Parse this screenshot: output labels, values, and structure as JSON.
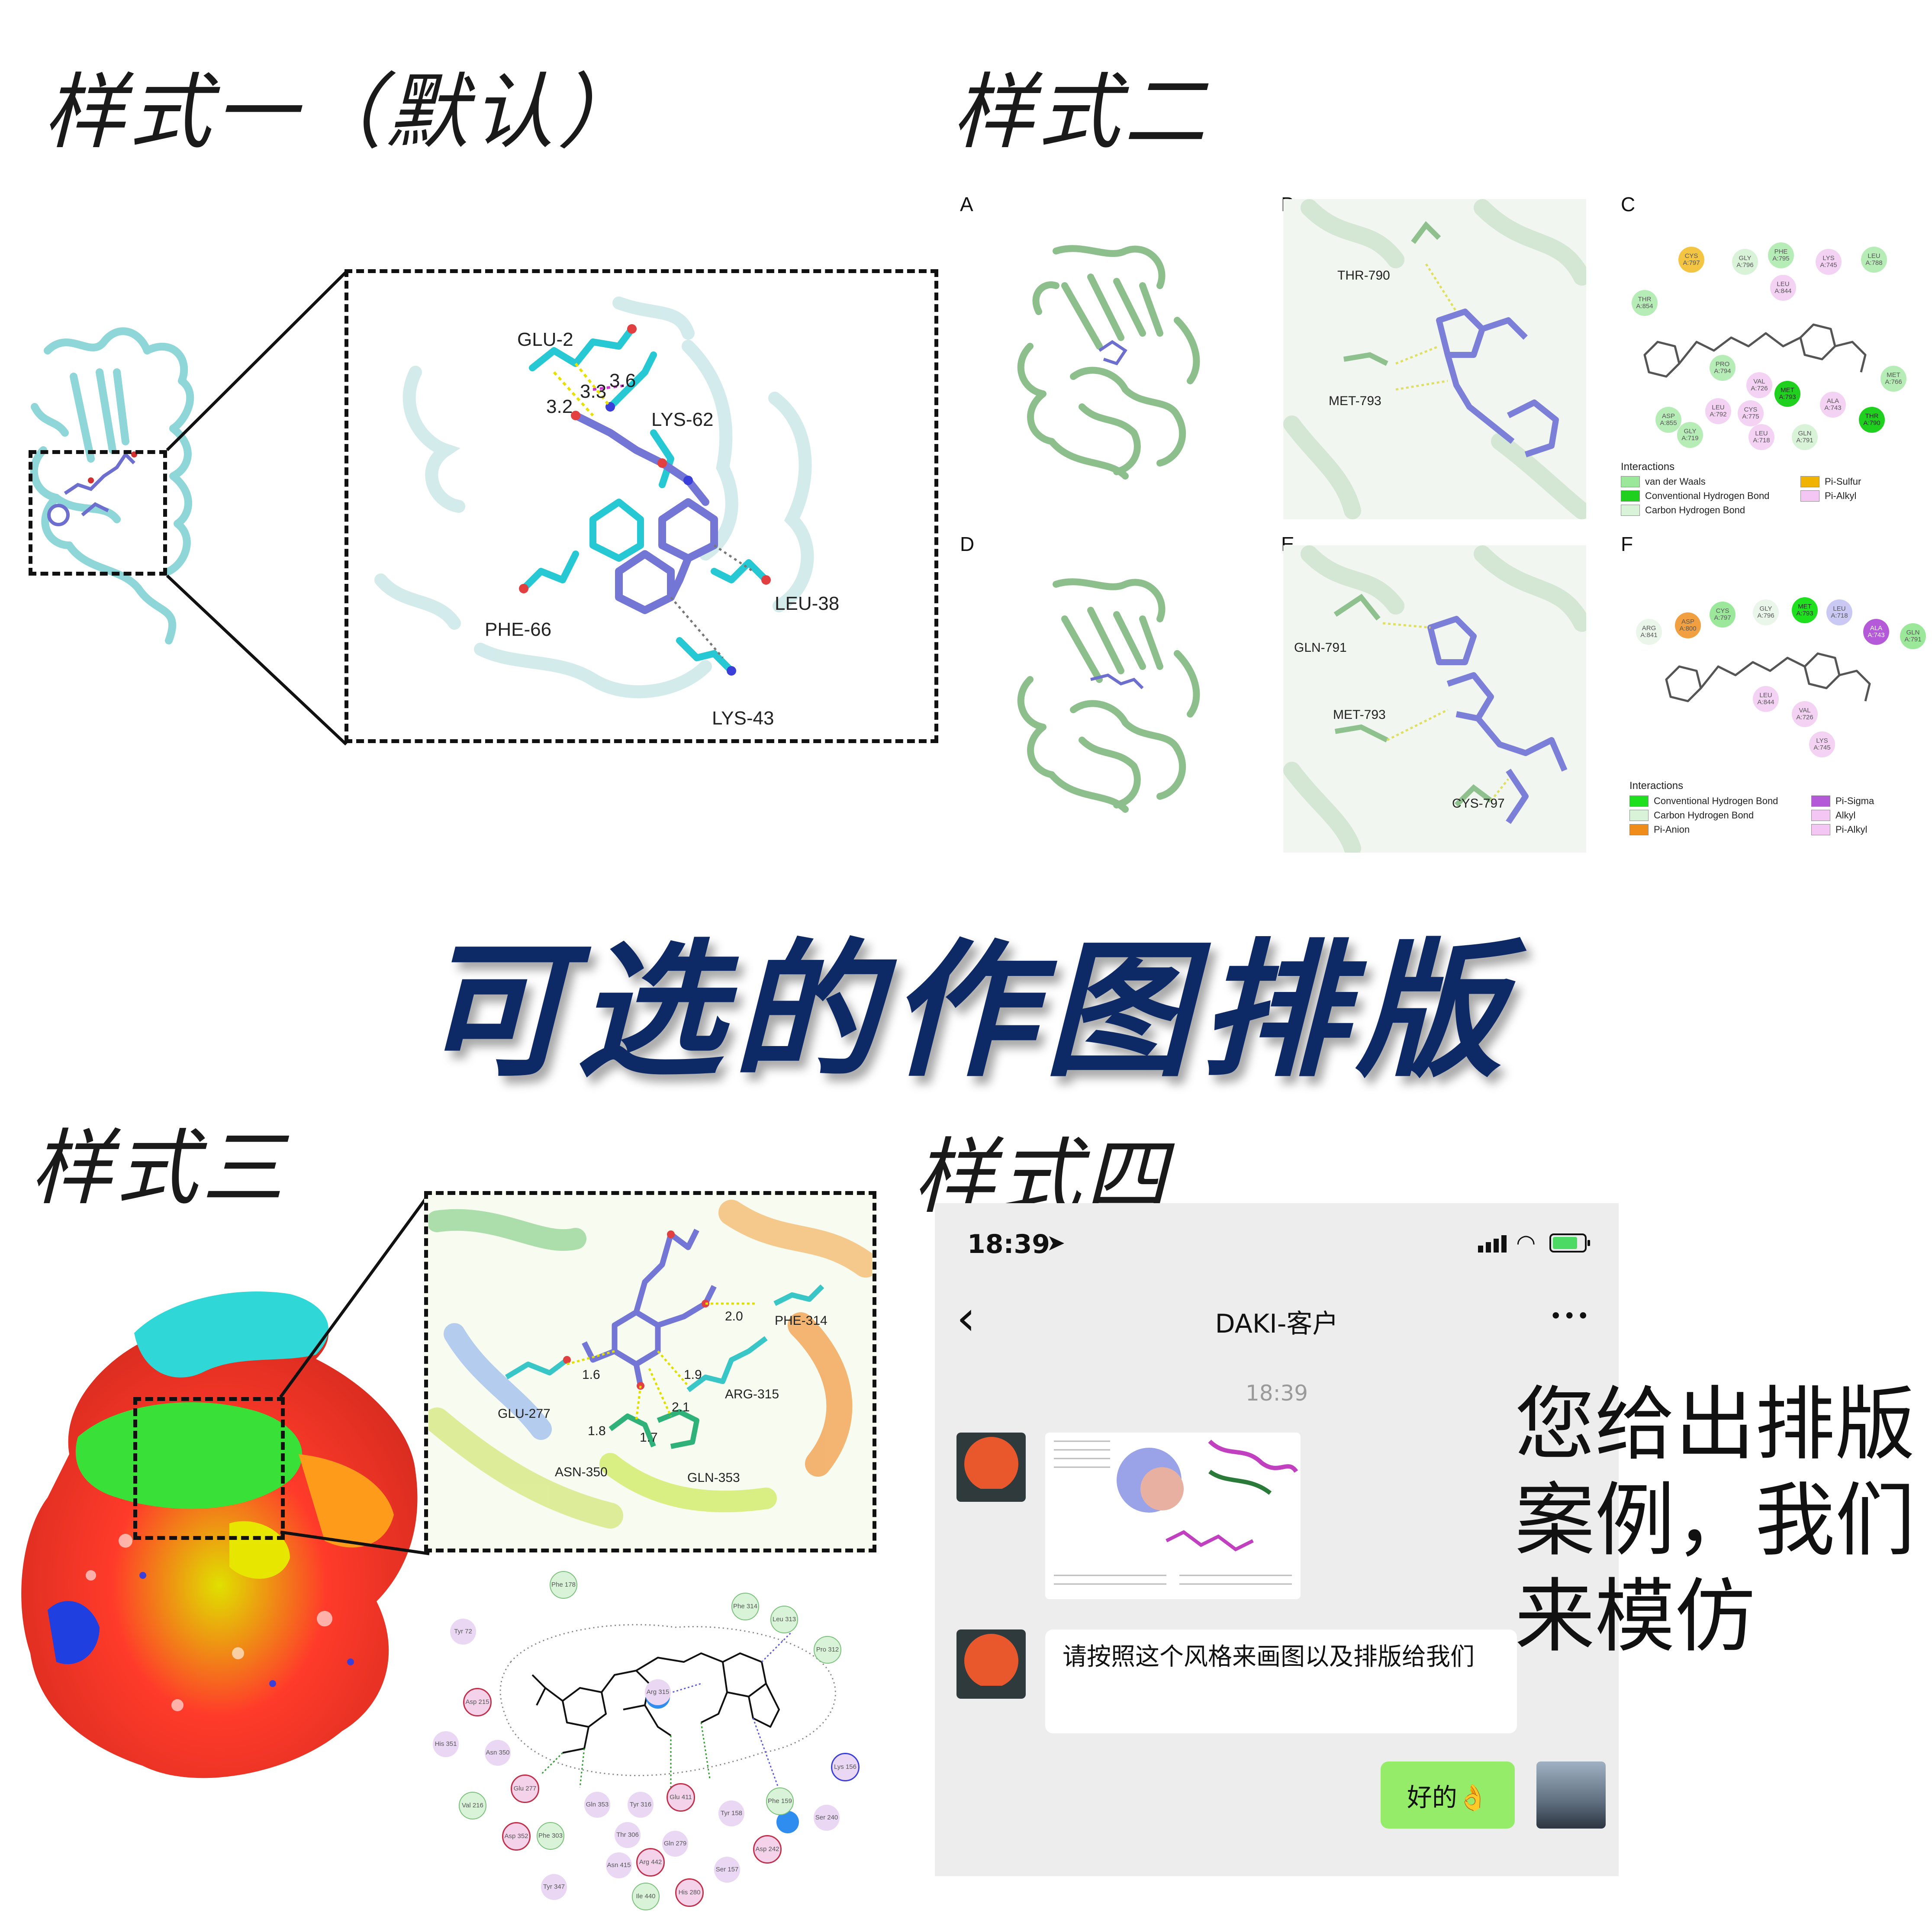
{
  "titles": {
    "style1": "样式一（默认）",
    "style2": "样式二",
    "style3": "样式三",
    "style4": "样式四",
    "main": "可选的作图排版",
    "side": "您给出排版\n案例，我们\n来模仿"
  },
  "style1": {
    "labels": [
      "GLU-2",
      "3.6",
      "3.3",
      "3.2",
      "LYS-62",
      "PHE-66",
      "LEU-38",
      "LYS-43"
    ]
  },
  "style2": {
    "panels": [
      "A",
      "B",
      "C",
      "D",
      "E",
      "F"
    ],
    "panel_b_labels": [
      "THR-790",
      "MET-793"
    ],
    "panel_e_labels": [
      "GLN-791",
      "MET-793",
      "CYS-797"
    ],
    "panel_c_residues": [
      "CYS A:797",
      "GLY A:796",
      "PHE A:795",
      "LYS A:745",
      "LEU A:788",
      "THR A:854",
      "LEU A:844",
      "PRO A:794",
      "VAL A:726",
      "MET A:793",
      "MET A:766",
      "ASP A:855",
      "LEU A:792",
      "CYS A:775",
      "ALA A:743",
      "THR A:790",
      "GLY A:719",
      "LEU A:718",
      "GLN A:791"
    ],
    "panel_c_legend_title": "Interactions",
    "panel_c_legend": [
      {
        "label": "van der Waals",
        "color": "#9be89b"
      },
      {
        "label": "Conventional Hydrogen Bond",
        "color": "#1fd01f"
      },
      {
        "label": "Carbon Hydrogen Bond",
        "color": "#d8f3d8"
      },
      {
        "label": "Pi-Sulfur",
        "color": "#f0b400"
      },
      {
        "label": "Pi-Alkyl",
        "color": "#f4c6f4"
      }
    ],
    "panel_f_residues": [
      "ARG A:841",
      "ASP A:800",
      "CYS A:797",
      "GLY A:796",
      "MET A:793",
      "LEU A:718",
      "ALA A:743",
      "GLN A:791",
      "LEU A:844",
      "VAL A:726",
      "LYS A:745"
    ],
    "panel_f_legend_title": "Interactions",
    "panel_f_legend": [
      {
        "label": "Conventional Hydrogen Bond",
        "color": "#1fe01f"
      },
      {
        "label": "Carbon Hydrogen Bond",
        "color": "#d8f3d8"
      },
      {
        "label": "Pi-Anion",
        "color": "#f08c1a"
      },
      {
        "label": "Pi-Sigma",
        "color": "#b45ad8"
      },
      {
        "label": "Alkyl",
        "color": "#f4c6f4"
      },
      {
        "label": "Pi-Alkyl",
        "color": "#f4c6f4"
      }
    ]
  },
  "style3": {
    "labels": [
      "2.0",
      "PHE-314",
      "1.6",
      "1.9",
      "ARG-315",
      "GLU-277",
      "2.1",
      "1.8",
      "1.7",
      "ASN-350",
      "GLN-353"
    ],
    "diagram_residues": [
      "Phe 178",
      "Tyr 72",
      "Phe 314",
      "Leu 313",
      "Pro 312",
      "Asp 215",
      "Arg 315",
      "His 351",
      "Asn 350",
      "Glu 277",
      "Lys 156",
      "Val 216",
      "Gln 353",
      "Tyr 316",
      "Glu 411",
      "Tyr 158",
      "Phe 159",
      "Ser 240",
      "Asp 352",
      "Phe 303",
      "Thr 306",
      "Gln 279",
      "Asp 242",
      "Asn 415",
      "Arg 442",
      "Ser 157",
      "Tyr 347",
      "Ile 440",
      "His 280"
    ]
  },
  "chat": {
    "time_status": "18:39",
    "title": "DAKI-客户",
    "more": "•••",
    "back": "‹",
    "timestamp": "18:39",
    "message_text": "请按照这个风格来画图以及排版给我们",
    "reply": "好的👌"
  },
  "colors": {
    "title_navy": "#0e2a66",
    "cyan_ribbon": "#7fd3d6",
    "ligand_purple": "#6d6fcf",
    "green_ribbon": "#8fc08f",
    "wechat_green": "#95ec69"
  }
}
